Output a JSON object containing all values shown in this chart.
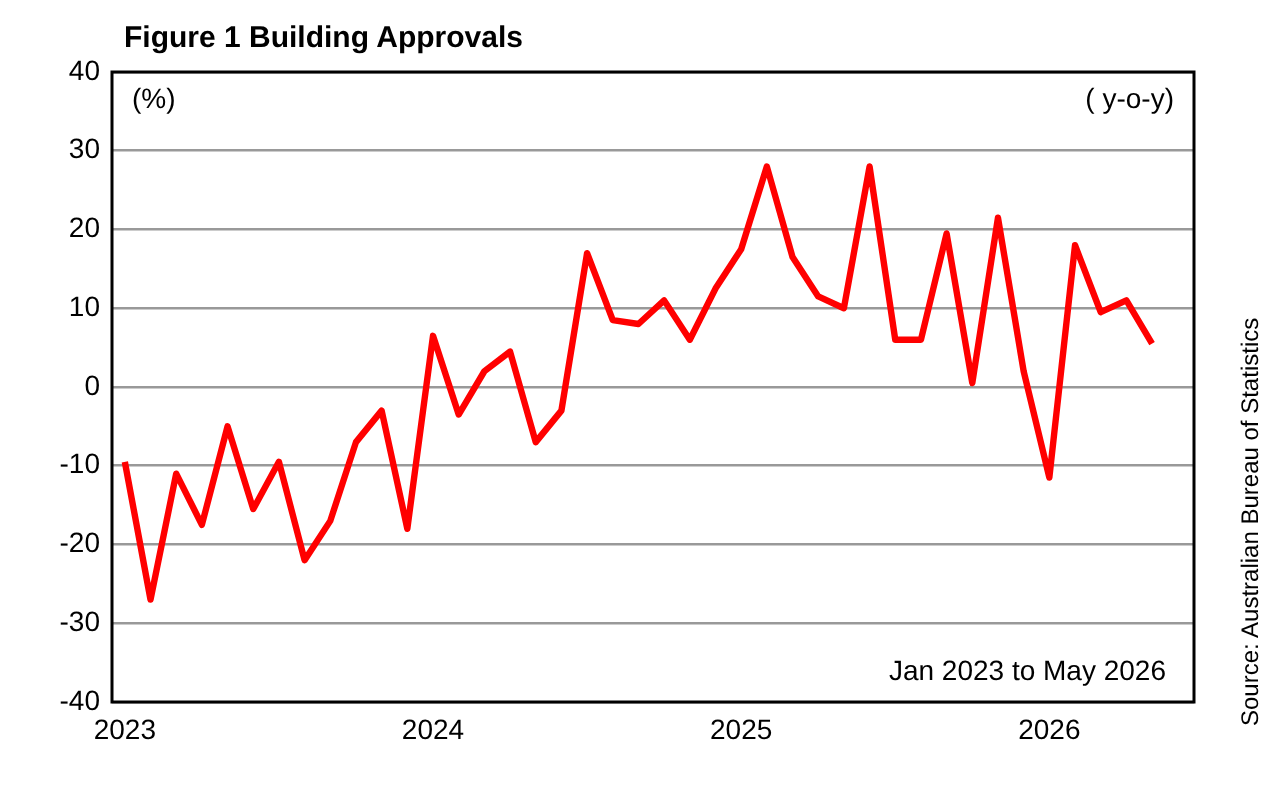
{
  "chart_data": {
    "type": "line",
    "title": "Figure 1 Building Approvals",
    "ylabel": "(%)",
    "annotations": [
      "( y-o-y)",
      "Jan 2023 to May 2026",
      "Source: Australian Bureau of Statistics"
    ],
    "x": [
      "2023-01",
      "2023-02",
      "2023-03",
      "2023-04",
      "2023-05",
      "2023-06",
      "2023-07",
      "2023-08",
      "2023-09",
      "2023-10",
      "2023-11",
      "2023-12",
      "2024-01",
      "2024-02",
      "2024-03",
      "2024-04",
      "2024-05",
      "2024-06",
      "2024-07",
      "2024-08",
      "2024-09",
      "2024-10",
      "2024-11",
      "2024-12",
      "2025-01",
      "2025-02",
      "2025-03",
      "2025-04",
      "2025-05",
      "2025-06",
      "2025-07",
      "2025-08",
      "2025-09",
      "2025-10",
      "2025-11",
      "2025-12",
      "2026-01",
      "2026-02",
      "2026-03",
      "2026-04",
      "2026-05"
    ],
    "series": [
      {
        "color": "#ff0000",
        "values": [
          -9.5,
          -27,
          -11,
          -17.5,
          -5,
          -15.5,
          -9.5,
          -22,
          -17,
          -7,
          -3,
          -18,
          6.5,
          -3.5,
          2,
          4.5,
          -7,
          -3,
          17,
          8.5,
          8,
          11,
          6,
          12.5,
          17.5,
          28,
          16.5,
          11.5,
          10,
          28,
          6,
          6,
          19.5,
          0.5,
          21.5,
          2,
          -11.5,
          18,
          9.5,
          11,
          5.5
        ]
      }
    ],
    "xlim": [
      "2022-12-16",
      "2026-06-20"
    ],
    "xticks": [
      {
        "value": "2023-01",
        "label": "2023"
      },
      {
        "value": "2024-01",
        "label": "2024"
      },
      {
        "value": "2025-01",
        "label": "2025"
      },
      {
        "value": "2026-01",
        "label": "2026"
      }
    ],
    "ylim": [
      -40,
      40
    ],
    "yticks": [
      -40,
      -30,
      -20,
      -10,
      0,
      10,
      20,
      30,
      40
    ],
    "grid": "y",
    "legend": false,
    "marker": "none",
    "line_style": "solid"
  }
}
